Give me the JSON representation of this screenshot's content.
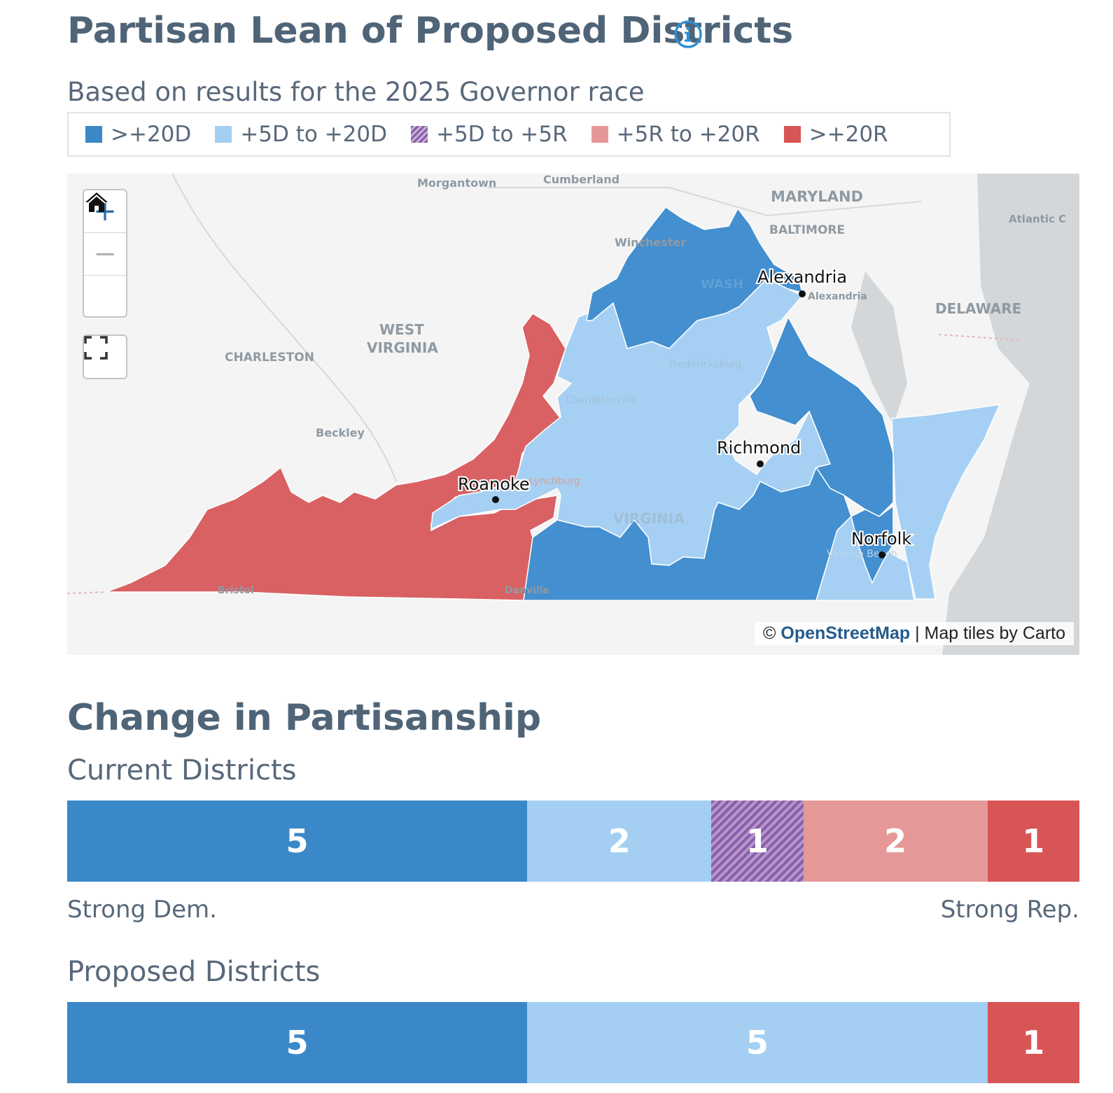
{
  "header": {
    "title": "Partisan Lean of Proposed Districts",
    "subtitle": "Based on results for the 2025 Governor race"
  },
  "legend": [
    {
      "label": ">+20D",
      "color": "#3b88c9"
    },
    {
      "label": "+5D to +20D",
      "color": "#a4cff2"
    },
    {
      "label": "+5D to +5R",
      "color": "#8a5ea8",
      "pattern": "hatched"
    },
    {
      "label": "+5R to +20R",
      "color": "#e69898"
    },
    {
      "label": ">+20R",
      "color": "#d85556"
    }
  ],
  "map": {
    "controls": {
      "zoom_in": "+",
      "zoom_out": "−"
    },
    "cities": [
      "Alexandria",
      "Richmond",
      "Roanoke",
      "Norfolk"
    ],
    "basemap_labels": [
      "Morgantown",
      "Cumberland",
      "MARYLAND",
      "BALTIMORE",
      "Winchester",
      "WEST",
      "VIRGINIA",
      "CHARLESTON",
      "Beckley",
      "DELAWARE",
      "Atlantic C",
      "Fredericksburg",
      "Charlottesville",
      "VIRGINIA",
      "Bristol",
      "Danville",
      "Lynchburg",
      "Virginia Beach",
      "WASH"
    ],
    "attribution_prefix": "©",
    "attribution_link": "OpenStreetMap",
    "attribution_suffix": "| Map tiles by Carto"
  },
  "change": {
    "title": "Change in Partisanship",
    "current": {
      "title": "Current Districts",
      "segments": [
        {
          "value": 5,
          "label": "5",
          "color": "#3b88c9"
        },
        {
          "value": 2,
          "label": "2",
          "color": "#a4cff2"
        },
        {
          "value": 1,
          "label": "1",
          "color": "#8a5ea8"
        },
        {
          "value": 2,
          "label": "2",
          "color": "#e69898"
        },
        {
          "value": 1,
          "label": "1",
          "color": "#d85556"
        }
      ]
    },
    "axis_left": "Strong Dem.",
    "axis_right": "Strong Rep.",
    "proposed": {
      "title": "Proposed Districts",
      "segments": [
        {
          "value": 5,
          "label": "5",
          "color": "#3b88c9"
        },
        {
          "value": 5,
          "label": "5",
          "color": "#a4cff2"
        },
        {
          "value": 1,
          "label": "1",
          "color": "#d85556"
        }
      ]
    }
  }
}
